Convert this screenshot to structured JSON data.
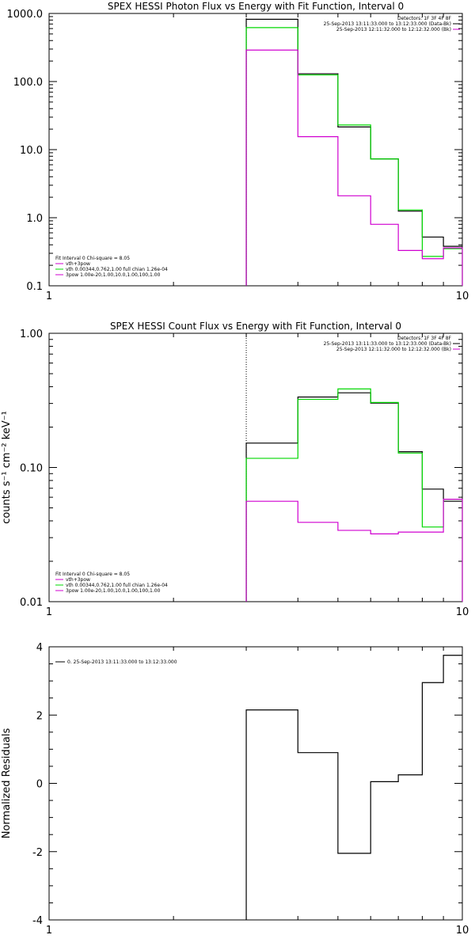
{
  "colors": {
    "axis": "#000000",
    "black": "#000000",
    "green": "#00d800",
    "magenta": "#d000d0"
  },
  "chart_data": [
    {
      "type": "line",
      "title": "SPEX HESSI Photon Flux vs Energy with Fit Function, Interval 0",
      "xlabel": "",
      "ylabel": "",
      "xscale": "log",
      "yscale": "log",
      "xlim": [
        1,
        10
      ],
      "ylim": [
        0.1,
        1000
      ],
      "xticks": [
        {
          "v": 1,
          "label": "1"
        },
        {
          "v": 10,
          "label": "10"
        }
      ],
      "yticks": [
        {
          "v": 1000,
          "label": "1000.0"
        },
        {
          "v": 100,
          "label": "100.0"
        },
        {
          "v": 10,
          "label": "10.0"
        },
        {
          "v": 1,
          "label": "1.0"
        },
        {
          "v": 0.1,
          "label": "0.1"
        }
      ],
      "dotted_x": 3,
      "dotted_color": "#000000",
      "series": [
        {
          "color": "#000000",
          "edges": [
            3,
            4,
            5,
            6,
            7,
            8,
            9,
            10
          ],
          "values": [
            820,
            130,
            21.5,
            7.3,
            1.25,
            0.52,
            0.38
          ],
          "drop_last": false,
          "drop_first": true
        },
        {
          "color": "#00d800",
          "edges": [
            3,
            4,
            5,
            6,
            7,
            8,
            9,
            10
          ],
          "values": [
            620,
            125,
            23,
            7.3,
            1.3,
            0.27,
            0.35
          ],
          "drop_last": true,
          "drop_first": true
        },
        {
          "color": "#d000d0",
          "edges": [
            3,
            4,
            5,
            6,
            7,
            8,
            9,
            10
          ],
          "values": [
            290,
            15.5,
            2.1,
            0.8,
            0.33,
            0.25,
            0.36
          ],
          "drop_last": true,
          "drop_first": true
        }
      ],
      "legend_top": {
        "lines": [
          "Detectors: 1F 3F 4F 8F",
          "25-Sep-2013 13:11:33.000 to 13:12:33.000 (Data-Bk)",
          "25-Sep-2013 12:11:32.000 to 12:12:32.000 (Bk)"
        ],
        "colors": [
          "",
          "#000000",
          "#d000d0"
        ]
      },
      "legend_bottom": {
        "lines": [
          "Fit Interval 0   Chi-square = 8.05",
          "vth+3pow",
          "vth 0.00344,0.762,1.00  full chian 1.26e-04",
          "3pow 1.00e-20,1.00,10.0,1.00,100,1.00"
        ],
        "colors": [
          "",
          "#d000d0",
          "#00d800",
          "#d000d0"
        ]
      }
    },
    {
      "type": "line",
      "title": "SPEX HESSI Count Flux vs Energy with Fit Function, Interval 0",
      "xlabel": "",
      "ylabel": "counts s⁻¹ cm⁻² keV⁻¹",
      "xscale": "log",
      "yscale": "log",
      "xlim": [
        1,
        10
      ],
      "ylim": [
        0.01,
        1.0
      ],
      "xticks": [
        {
          "v": 1,
          "label": "1"
        },
        {
          "v": 10,
          "label": "10"
        }
      ],
      "yticks": [
        {
          "v": 1.0,
          "label": "1.00"
        },
        {
          "v": 0.1,
          "label": "0.10"
        },
        {
          "v": 0.01,
          "label": "0.01"
        }
      ],
      "dotted_x": 3,
      "dotted_color": "#000000",
      "series": [
        {
          "color": "#000000",
          "edges": [
            3,
            4,
            5,
            6,
            7,
            8,
            9,
            10
          ],
          "values": [
            0.152,
            0.335,
            0.36,
            0.302,
            0.131,
            0.069,
            0.056
          ],
          "drop_last": false,
          "drop_first": true
        },
        {
          "color": "#00d800",
          "edges": [
            3,
            4,
            5,
            6,
            7,
            8,
            9,
            10
          ],
          "values": [
            0.117,
            0.322,
            0.385,
            0.305,
            0.128,
            0.036,
            0.058
          ],
          "drop_last": true,
          "drop_first": true
        },
        {
          "color": "#d000d0",
          "edges": [
            3,
            4,
            5,
            6,
            7,
            8,
            9,
            10
          ],
          "values": [
            0.056,
            0.039,
            0.034,
            0.032,
            0.033,
            0.033,
            0.058
          ],
          "drop_last": true,
          "drop_first": true
        }
      ],
      "legend_top": {
        "lines": [
          "Detectors: 1F 3F 4F 8F",
          "25-Sep-2013 13:11:33.000 to 13:12:33.000 (Data-Bk)",
          "25-Sep-2013 12:11:32.000 to 12:12:32.000 (Bk)"
        ],
        "colors": [
          "",
          "#000000",
          "#d000d0"
        ]
      },
      "legend_bottom": {
        "lines": [
          "Fit Interval 0   Chi-square = 8.05",
          "vth+3pow",
          "vth 0.00344,0.762,1.00  full chian 1.26e-04",
          "3pow 1.00e-20,1.00,10.0,1.00,100,1.00"
        ],
        "colors": [
          "",
          "#d000d0",
          "#00d800",
          "#d000d0"
        ]
      }
    },
    {
      "type": "line",
      "title": "",
      "xlabel": "",
      "ylabel": "Normalized Residuals",
      "xscale": "log",
      "yscale": "linear",
      "xlim": [
        1,
        10
      ],
      "ylim": [
        -4,
        4
      ],
      "xticks": [
        {
          "v": 1,
          "label": "1"
        },
        {
          "v": 10,
          "label": "10"
        }
      ],
      "yticks": [
        {
          "v": 4,
          "label": "4"
        },
        {
          "v": 2,
          "label": "2"
        },
        {
          "v": 0,
          "label": "0"
        },
        {
          "v": -2,
          "label": "-2"
        },
        {
          "v": -4,
          "label": "-4"
        }
      ],
      "series": [
        {
          "color": "#000000",
          "edges": [
            3,
            4,
            5,
            6,
            7,
            8,
            9,
            10
          ],
          "values": [
            2.15,
            0.9,
            -2.05,
            0.05,
            0.25,
            2.95,
            3.75
          ],
          "drop_last": false,
          "drop_first": true
        }
      ],
      "legend_top": {
        "lines": [
          "0. 25-Sep-2013 13:11:33.000 to 13:12:33.000"
        ],
        "colors": [
          "#000000"
        ]
      }
    }
  ]
}
